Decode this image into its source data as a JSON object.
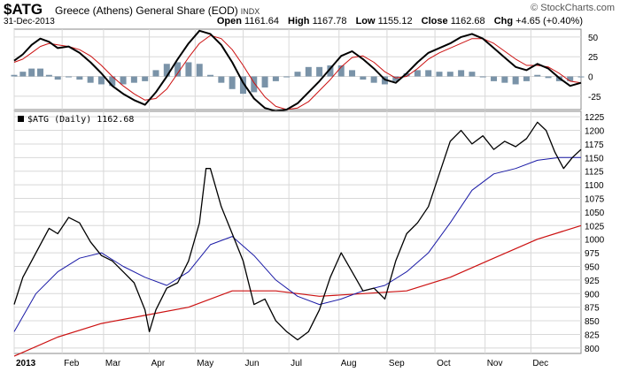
{
  "header": {
    "symbol": "$ATG",
    "description": "Greece (Athens) General Share (EOD)",
    "exchange": "INDX",
    "date": "31-Dec-2013",
    "brand": "© StockCharts.com",
    "ohlc": {
      "open_label": "Open",
      "open": "1161.64",
      "high_label": "High",
      "high": "1167.78",
      "low_label": "Low",
      "low": "1155.12",
      "close_label": "Close",
      "close": "1162.68",
      "chg_label": "Chg",
      "chg": "+4.65 (+0.40%)"
    }
  },
  "legend": {
    "main": "$ATG (Daily) 1162.68"
  },
  "colors": {
    "price": "#000000",
    "ma_short": "#1a1aa6",
    "ma_long": "#cc1111",
    "macd_line": "#000000",
    "signal_line": "#cc1111",
    "histogram": "#7a93a8",
    "grid": "#d8d8d8"
  },
  "chart_data": [
    {
      "type": "line",
      "panel": "indicator",
      "y_ticks": [
        50,
        25,
        0,
        -25
      ],
      "ylim": [
        -42,
        60
      ],
      "series": [
        {
          "role": "indicator-line",
          "x": [
            0,
            4,
            8,
            12,
            16,
            20,
            25,
            30,
            35,
            40,
            45,
            50,
            55,
            60,
            65,
            70,
            75,
            80,
            85,
            90,
            95,
            100,
            105,
            110,
            115,
            120,
            125,
            130,
            135,
            140,
            145,
            150,
            155,
            160,
            165,
            170,
            175,
            180,
            185,
            190,
            195,
            200,
            205,
            210,
            215,
            220,
            225,
            230,
            235,
            240,
            245,
            250,
            255,
            260
          ],
          "values": [
            20,
            28,
            40,
            48,
            44,
            36,
            38,
            30,
            18,
            4,
            -12,
            -22,
            -30,
            -36,
            -20,
            0,
            22,
            42,
            58,
            54,
            40,
            18,
            -8,
            -28,
            -40,
            -44,
            -42,
            -34,
            -20,
            -6,
            10,
            26,
            32,
            22,
            10,
            -4,
            -8,
            4,
            18,
            30,
            36,
            42,
            50,
            54,
            48,
            36,
            24,
            12,
            8,
            16,
            10,
            -2,
            -12,
            -8
          ]
        },
        {
          "role": "signal-line",
          "x": [
            0,
            4,
            8,
            12,
            16,
            20,
            25,
            30,
            35,
            40,
            45,
            50,
            55,
            60,
            65,
            70,
            75,
            80,
            85,
            90,
            95,
            100,
            105,
            110,
            115,
            120,
            125,
            130,
            135,
            140,
            145,
            150,
            155,
            160,
            165,
            170,
            175,
            180,
            185,
            190,
            195,
            200,
            205,
            210,
            215,
            220,
            225,
            230,
            235,
            240,
            245,
            250,
            255,
            260
          ],
          "values": [
            18,
            22,
            30,
            38,
            42,
            40,
            38,
            34,
            26,
            14,
            0,
            -12,
            -22,
            -30,
            -28,
            -16,
            4,
            24,
            42,
            52,
            48,
            34,
            14,
            -8,
            -26,
            -38,
            -42,
            -40,
            -32,
            -18,
            -4,
            12,
            24,
            26,
            18,
            6,
            -2,
            0,
            10,
            22,
            30,
            36,
            42,
            48,
            48,
            42,
            32,
            22,
            14,
            14,
            12,
            4,
            -6,
            -8
          ]
        },
        {
          "role": "histogram",
          "x": [
            0,
            4,
            8,
            12,
            16,
            20,
            25,
            30,
            35,
            40,
            45,
            50,
            55,
            60,
            65,
            70,
            75,
            80,
            85,
            90,
            95,
            100,
            105,
            110,
            115,
            120,
            125,
            130,
            135,
            140,
            145,
            150,
            155,
            160,
            165,
            170,
            175,
            180,
            185,
            190,
            195,
            200,
            205,
            210,
            215,
            220,
            225,
            230,
            235,
            240,
            245,
            250,
            255,
            260
          ],
          "values": [
            2,
            6,
            10,
            10,
            2,
            -4,
            0,
            -4,
            -8,
            -10,
            -12,
            -10,
            -8,
            -6,
            8,
            16,
            18,
            18,
            16,
            2,
            -8,
            -16,
            -22,
            -20,
            -14,
            -6,
            0,
            6,
            12,
            12,
            14,
            14,
            8,
            -4,
            -8,
            -10,
            -6,
            4,
            8,
            8,
            6,
            6,
            8,
            6,
            0,
            -6,
            -8,
            -10,
            -6,
            2,
            -2,
            -6,
            -6,
            0
          ]
        }
      ]
    },
    {
      "type": "line",
      "panel": "price",
      "ylabel": "",
      "ylim": [
        790,
        1235
      ],
      "y_ticks": [
        800,
        825,
        850,
        875,
        900,
        925,
        950,
        975,
        1000,
        1025,
        1050,
        1075,
        1100,
        1125,
        1150,
        1175,
        1200,
        1225
      ],
      "x_ticks": [
        {
          "label": "2013",
          "x": 0
        },
        {
          "label": "Feb",
          "x": 22
        },
        {
          "label": "Mar",
          "x": 41
        },
        {
          "label": "Apr",
          "x": 62
        },
        {
          "label": "May",
          "x": 83
        },
        {
          "label": "Jun",
          "x": 105
        },
        {
          "label": "Jul",
          "x": 126
        },
        {
          "label": "Aug",
          "x": 149
        },
        {
          "label": "Sep",
          "x": 171
        },
        {
          "label": "Oct",
          "x": 193
        },
        {
          "label": "Nov",
          "x": 216
        },
        {
          "label": "Dec",
          "x": 237
        }
      ],
      "series": [
        {
          "role": "price",
          "x": [
            0,
            4,
            8,
            12,
            16,
            20,
            25,
            30,
            35,
            40,
            45,
            50,
            55,
            60,
            62,
            65,
            70,
            75,
            80,
            85,
            88,
            90,
            95,
            100,
            105,
            110,
            115,
            120,
            125,
            130,
            135,
            140,
            145,
            150,
            155,
            160,
            165,
            170,
            175,
            180,
            185,
            190,
            195,
            200,
            205,
            210,
            215,
            220,
            225,
            230,
            235,
            240,
            244,
            248,
            252,
            256,
            260
          ],
          "values": [
            880,
            930,
            960,
            990,
            1020,
            1010,
            1040,
            1030,
            995,
            970,
            960,
            940,
            920,
            870,
            830,
            870,
            910,
            920,
            960,
            1030,
            1130,
            1130,
            1060,
            1010,
            960,
            880,
            890,
            850,
            830,
            815,
            830,
            870,
            930,
            975,
            940,
            905,
            910,
            890,
            960,
            1010,
            1030,
            1060,
            1120,
            1180,
            1200,
            1175,
            1190,
            1165,
            1180,
            1170,
            1185,
            1215,
            1200,
            1160,
            1130,
            1150,
            1165
          ]
        },
        {
          "role": "ma-short",
          "x": [
            0,
            10,
            20,
            30,
            40,
            50,
            60,
            70,
            80,
            90,
            100,
            110,
            120,
            130,
            140,
            150,
            160,
            170,
            180,
            190,
            200,
            210,
            220,
            230,
            240,
            250,
            260
          ],
          "values": [
            830,
            900,
            940,
            965,
            975,
            950,
            930,
            915,
            940,
            990,
            1005,
            970,
            925,
            895,
            880,
            890,
            905,
            915,
            940,
            975,
            1030,
            1090,
            1120,
            1130,
            1145,
            1150,
            1150
          ]
        },
        {
          "role": "ma-long",
          "x": [
            0,
            20,
            40,
            60,
            80,
            100,
            120,
            140,
            160,
            180,
            200,
            220,
            240,
            260
          ],
          "values": [
            785,
            820,
            845,
            860,
            875,
            905,
            905,
            895,
            900,
            905,
            930,
            965,
            1000,
            1025
          ]
        }
      ]
    }
  ]
}
